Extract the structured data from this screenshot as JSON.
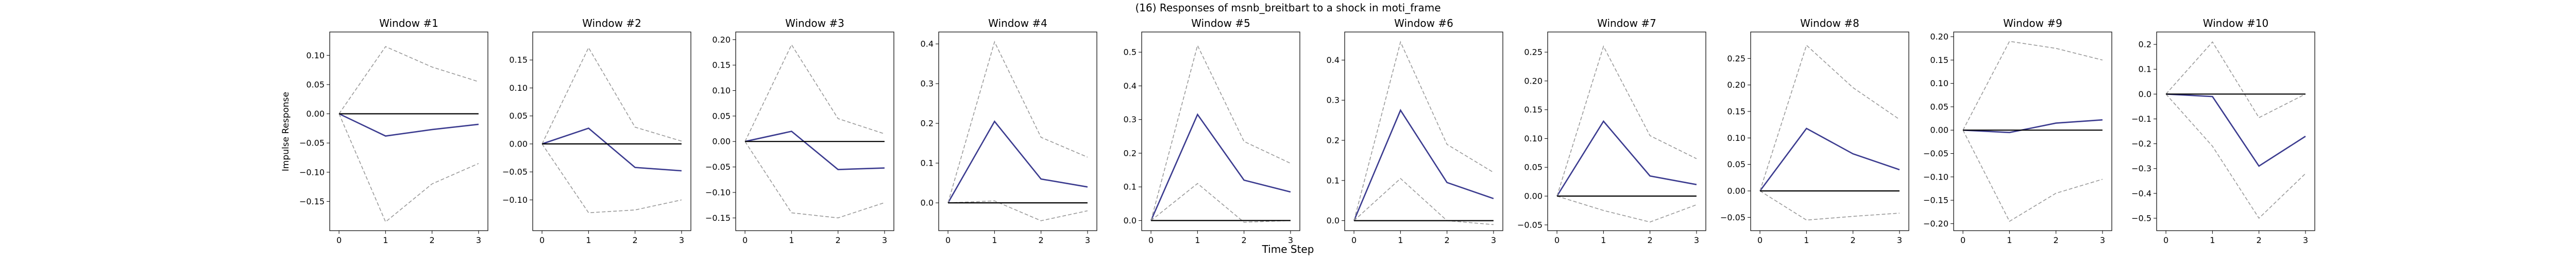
{
  "figure": {
    "suptitle": "(16) Responses of msnb_breitbart to a shock in moti_frame",
    "xlabel": "Time Step",
    "ylabel": "Impulse Response"
  },
  "chart_data": [
    {
      "type": "line",
      "title": "Window #1",
      "x": [
        0,
        1,
        2,
        3
      ],
      "ylim": [
        -0.2,
        0.14
      ],
      "yticks": [
        -0.15,
        -0.1,
        -0.05,
        0.0,
        0.05,
        0.1
      ],
      "ytick_labels": [
        "−0.15",
        "−0.10",
        "−0.05",
        "0.00",
        "0.05",
        "0.10"
      ],
      "series": [
        {
          "role": "response",
          "color": "#3b3b8f",
          "style": "solid",
          "values": [
            0.0,
            -0.038,
            -0.027,
            -0.018
          ]
        },
        {
          "role": "upper",
          "color": "#999999",
          "style": "dashed",
          "values": [
            0.0,
            0.115,
            0.08,
            0.055
          ]
        },
        {
          "role": "lower",
          "color": "#999999",
          "style": "dashed",
          "values": [
            0.0,
            -0.185,
            -0.12,
            -0.085
          ]
        },
        {
          "role": "zero",
          "color": "#000000",
          "style": "solid",
          "values": [
            0,
            0,
            0,
            0
          ]
        }
      ]
    },
    {
      "type": "line",
      "title": "Window #2",
      "x": [
        0,
        1,
        2,
        3
      ],
      "ylim": [
        -0.155,
        0.2
      ],
      "yticks": [
        -0.1,
        -0.05,
        0.0,
        0.05,
        0.1,
        0.15
      ],
      "ytick_labels": [
        "−0.10",
        "−0.05",
        "0.00",
        "0.05",
        "0.10",
        "0.15"
      ],
      "series": [
        {
          "role": "response",
          "color": "#3b3b8f",
          "style": "solid",
          "values": [
            0.0,
            0.028,
            -0.042,
            -0.048
          ]
        },
        {
          "role": "upper",
          "color": "#999999",
          "style": "dashed",
          "values": [
            0.0,
            0.172,
            0.03,
            0.005
          ]
        },
        {
          "role": "lower",
          "color": "#999999",
          "style": "dashed",
          "values": [
            0.0,
            -0.123,
            -0.118,
            -0.1
          ]
        },
        {
          "role": "zero",
          "color": "#000000",
          "style": "solid",
          "values": [
            0,
            0,
            0,
            0
          ]
        }
      ]
    },
    {
      "type": "line",
      "title": "Window #3",
      "x": [
        0,
        1,
        2,
        3
      ],
      "ylim": [
        -0.175,
        0.215
      ],
      "yticks": [
        -0.15,
        -0.1,
        -0.05,
        0.0,
        0.05,
        0.1,
        0.15,
        0.2
      ],
      "ytick_labels": [
        "−0.15",
        "−0.10",
        "−0.05",
        "0.00",
        "0.05",
        "0.10",
        "0.15",
        "0.20"
      ],
      "series": [
        {
          "role": "response",
          "color": "#3b3b8f",
          "style": "solid",
          "values": [
            0.0,
            0.02,
            -0.055,
            -0.052
          ]
        },
        {
          "role": "upper",
          "color": "#999999",
          "style": "dashed",
          "values": [
            0.0,
            0.19,
            0.045,
            0.015
          ]
        },
        {
          "role": "lower",
          "color": "#999999",
          "style": "dashed",
          "values": [
            0.0,
            -0.14,
            -0.15,
            -0.12
          ]
        },
        {
          "role": "zero",
          "color": "#000000",
          "style": "solid",
          "values": [
            0,
            0,
            0,
            0
          ]
        }
      ]
    },
    {
      "type": "line",
      "title": "Window #4",
      "x": [
        0,
        1,
        2,
        3
      ],
      "ylim": [
        -0.07,
        0.43
      ],
      "yticks": [
        0.0,
        0.1,
        0.2,
        0.3,
        0.4
      ],
      "ytick_labels": [
        "0.0",
        "0.1",
        "0.2",
        "0.3",
        "0.4"
      ],
      "series": [
        {
          "role": "response",
          "color": "#3b3b8f",
          "style": "solid",
          "values": [
            0.0,
            0.205,
            0.06,
            0.04
          ]
        },
        {
          "role": "upper",
          "color": "#999999",
          "style": "dashed",
          "values": [
            0.0,
            0.405,
            0.165,
            0.115
          ]
        },
        {
          "role": "lower",
          "color": "#999999",
          "style": "dashed",
          "values": [
            0.0,
            0.005,
            -0.045,
            -0.02
          ]
        },
        {
          "role": "zero",
          "color": "#000000",
          "style": "solid",
          "values": [
            0,
            0,
            0,
            0
          ]
        }
      ]
    },
    {
      "type": "line",
      "title": "Window #5",
      "x": [
        0,
        1,
        2,
        3
      ],
      "ylim": [
        -0.03,
        0.56
      ],
      "yticks": [
        0.0,
        0.1,
        0.2,
        0.3,
        0.4,
        0.5
      ],
      "ytick_labels": [
        "0.0",
        "0.1",
        "0.2",
        "0.3",
        "0.4",
        "0.5"
      ],
      "series": [
        {
          "role": "response",
          "color": "#3b3b8f",
          "style": "solid",
          "values": [
            0.0,
            0.315,
            0.12,
            0.085
          ]
        },
        {
          "role": "upper",
          "color": "#999999",
          "style": "dashed",
          "values": [
            0.0,
            0.52,
            0.235,
            0.17
          ]
        },
        {
          "role": "lower",
          "color": "#999999",
          "style": "dashed",
          "values": [
            0.0,
            0.11,
            -0.005,
            0.0
          ]
        },
        {
          "role": "zero",
          "color": "#000000",
          "style": "solid",
          "values": [
            0,
            0,
            0,
            0
          ]
        }
      ]
    },
    {
      "type": "line",
      "title": "Window #6",
      "x": [
        0,
        1,
        2,
        3
      ],
      "ylim": [
        -0.025,
        0.47
      ],
      "yticks": [
        0.0,
        0.1,
        0.2,
        0.3,
        0.4
      ],
      "ytick_labels": [
        "0.0",
        "0.1",
        "0.2",
        "0.3",
        "0.4"
      ],
      "series": [
        {
          "role": "response",
          "color": "#3b3b8f",
          "style": "solid",
          "values": [
            0.0,
            0.275,
            0.095,
            0.055
          ]
        },
        {
          "role": "upper",
          "color": "#999999",
          "style": "dashed",
          "values": [
            0.0,
            0.445,
            0.19,
            0.12
          ]
        },
        {
          "role": "lower",
          "color": "#999999",
          "style": "dashed",
          "values": [
            0.0,
            0.105,
            0.0,
            -0.01
          ]
        },
        {
          "role": "zero",
          "color": "#000000",
          "style": "solid",
          "values": [
            0,
            0,
            0,
            0
          ]
        }
      ]
    },
    {
      "type": "line",
      "title": "Window #7",
      "x": [
        0,
        1,
        2,
        3
      ],
      "ylim": [
        -0.06,
        0.285
      ],
      "yticks": [
        -0.05,
        0.0,
        0.05,
        0.1,
        0.15,
        0.2,
        0.25
      ],
      "ytick_labels": [
        "−0.05",
        "0.00",
        "0.05",
        "0.10",
        "0.15",
        "0.20",
        "0.25"
      ],
      "series": [
        {
          "role": "response",
          "color": "#3b3b8f",
          "style": "solid",
          "values": [
            0.0,
            0.13,
            0.035,
            0.02
          ]
        },
        {
          "role": "upper",
          "color": "#999999",
          "style": "dashed",
          "values": [
            0.0,
            0.26,
            0.105,
            0.065
          ]
        },
        {
          "role": "lower",
          "color": "#999999",
          "style": "dashed",
          "values": [
            0.0,
            -0.025,
            -0.045,
            -0.015
          ]
        },
        {
          "role": "zero",
          "color": "#000000",
          "style": "solid",
          "values": [
            0,
            0,
            0,
            0
          ]
        }
      ]
    },
    {
      "type": "line",
      "title": "Window #8",
      "x": [
        0,
        1,
        2,
        3
      ],
      "ylim": [
        -0.075,
        0.3
      ],
      "yticks": [
        -0.05,
        0.0,
        0.05,
        0.1,
        0.15,
        0.2,
        0.25
      ],
      "ytick_labels": [
        "−0.05",
        "0.00",
        "0.05",
        "0.10",
        "0.15",
        "0.20",
        "0.25"
      ],
      "series": [
        {
          "role": "response",
          "color": "#3b3b8f",
          "style": "solid",
          "values": [
            0.0,
            0.118,
            0.07,
            0.04
          ]
        },
        {
          "role": "upper",
          "color": "#999999",
          "style": "dashed",
          "values": [
            0.0,
            0.275,
            0.195,
            0.135
          ]
        },
        {
          "role": "lower",
          "color": "#999999",
          "style": "dashed",
          "values": [
            0.0,
            -0.055,
            -0.048,
            -0.042
          ]
        },
        {
          "role": "zero",
          "color": "#000000",
          "style": "solid",
          "values": [
            0,
            0,
            0,
            0
          ]
        }
      ]
    },
    {
      "type": "line",
      "title": "Window #9",
      "x": [
        0,
        1,
        2,
        3
      ],
      "ylim": [
        -0.215,
        0.21
      ],
      "yticks": [
        -0.2,
        -0.15,
        -0.1,
        -0.05,
        0.0,
        0.05,
        0.1,
        0.15,
        0.2
      ],
      "ytick_labels": [
        "−0.20",
        "−0.15",
        "−0.10",
        "−0.05",
        "0.00",
        "0.05",
        "0.10",
        "0.15",
        "0.20"
      ],
      "series": [
        {
          "role": "response",
          "color": "#3b3b8f",
          "style": "solid",
          "values": [
            0.0,
            -0.005,
            0.015,
            0.022
          ]
        },
        {
          "role": "upper",
          "color": "#999999",
          "style": "dashed",
          "values": [
            0.0,
            0.19,
            0.175,
            0.15
          ]
        },
        {
          "role": "lower",
          "color": "#999999",
          "style": "dashed",
          "values": [
            0.0,
            -0.195,
            -0.135,
            -0.105
          ]
        },
        {
          "role": "zero",
          "color": "#000000",
          "style": "solid",
          "values": [
            0,
            0,
            0,
            0
          ]
        }
      ]
    },
    {
      "type": "line",
      "title": "Window #10",
      "x": [
        0,
        1,
        2,
        3
      ],
      "ylim": [
        -0.55,
        0.25
      ],
      "yticks": [
        -0.5,
        -0.4,
        -0.3,
        -0.2,
        -0.1,
        0.0,
        0.1,
        0.2
      ],
      "ytick_labels": [
        "−0.5",
        "−0.4",
        "−0.3",
        "−0.2",
        "−0.1",
        "0.0",
        "0.1",
        "0.2"
      ],
      "series": [
        {
          "role": "response",
          "color": "#3b3b8f",
          "style": "solid",
          "values": [
            0.0,
            -0.01,
            -0.29,
            -0.17
          ]
        },
        {
          "role": "upper",
          "color": "#999999",
          "style": "dashed",
          "values": [
            0.0,
            0.21,
            -0.095,
            0.0
          ]
        },
        {
          "role": "lower",
          "color": "#999999",
          "style": "dashed",
          "values": [
            0.0,
            -0.21,
            -0.5,
            -0.32
          ]
        },
        {
          "role": "zero",
          "color": "#000000",
          "style": "solid",
          "values": [
            0,
            0,
            0,
            0
          ]
        }
      ]
    }
  ]
}
